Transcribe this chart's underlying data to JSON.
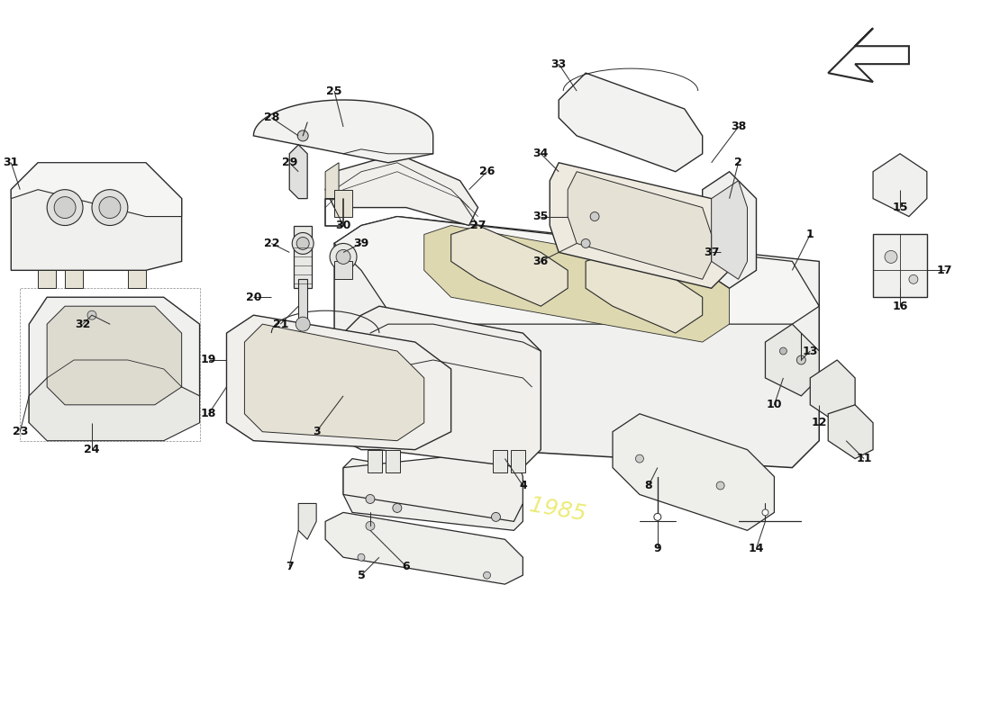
{
  "bg": "#ffffff",
  "lc": "#2a2a2a",
  "fl": "#f8f8f8",
  "fm": "#eeebe0",
  "label_fs": 9,
  "label_color": "#111111",
  "wm_gray": "#d8d8d8",
  "wm_yellow": "#f0f080",
  "fig_w": 11.0,
  "fig_h": 8.0,
  "dpi": 100,
  "xlim": [
    0,
    110
  ],
  "ylim": [
    0,
    80
  ]
}
